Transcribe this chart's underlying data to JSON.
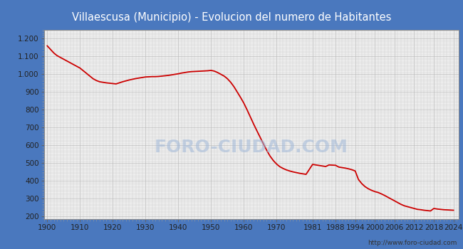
{
  "title": "Villaescusa (Municipio) - Evolucion del numero de Habitantes",
  "title_color": "#ffffff",
  "title_bg_color": "#4a78be",
  "plot_bg_color": "#f0f0f0",
  "outer_bg_color": "#4a78be",
  "line_color": "#cc0000",
  "line_width": 1.3,
  "watermark": "FORO-CIUDAD.COM",
  "url": "http://www.foro-ciudad.com",
  "years": [
    1900,
    1901,
    1902,
    1903,
    1904,
    1905,
    1906,
    1907,
    1908,
    1909,
    1910,
    1911,
    1912,
    1913,
    1914,
    1915,
    1916,
    1917,
    1918,
    1919,
    1920,
    1921,
    1922,
    1923,
    1924,
    1925,
    1926,
    1927,
    1928,
    1929,
    1930,
    1931,
    1932,
    1933,
    1934,
    1935,
    1936,
    1937,
    1938,
    1939,
    1940,
    1941,
    1942,
    1943,
    1944,
    1945,
    1946,
    1947,
    1948,
    1949,
    1950,
    1951,
    1952,
    1953,
    1954,
    1955,
    1956,
    1957,
    1958,
    1959,
    1960,
    1961,
    1962,
    1963,
    1964,
    1965,
    1966,
    1967,
    1968,
    1969,
    1970,
    1971,
    1972,
    1973,
    1974,
    1975,
    1976,
    1977,
    1978,
    1979,
    1981,
    1982,
    1983,
    1984,
    1985,
    1986,
    1987,
    1988,
    1989,
    1990,
    1991,
    1992,
    1993,
    1994,
    1995,
    1996,
    1997,
    1998,
    1999,
    2000,
    2001,
    2002,
    2003,
    2004,
    2005,
    2006,
    2007,
    2008,
    2009,
    2010,
    2011,
    2012,
    2013,
    2014,
    2015,
    2016,
    2017,
    2018,
    2019,
    2020,
    2021,
    2022,
    2023,
    2024
  ],
  "population": [
    1160,
    1140,
    1120,
    1105,
    1095,
    1085,
    1075,
    1065,
    1055,
    1045,
    1035,
    1020,
    1005,
    990,
    975,
    965,
    958,
    955,
    952,
    950,
    948,
    946,
    952,
    958,
    963,
    968,
    972,
    976,
    979,
    982,
    985,
    986,
    987,
    987,
    988,
    990,
    992,
    994,
    997,
    1000,
    1003,
    1007,
    1010,
    1013,
    1015,
    1016,
    1017,
    1018,
    1019,
    1020,
    1022,
    1018,
    1010,
    1000,
    990,
    975,
    955,
    930,
    900,
    870,
    838,
    800,
    760,
    720,
    682,
    645,
    608,
    572,
    540,
    515,
    495,
    480,
    470,
    462,
    456,
    451,
    447,
    443,
    440,
    437,
    493,
    490,
    487,
    484,
    481,
    490,
    489,
    488,
    478,
    475,
    472,
    468,
    463,
    456,
    408,
    385,
    368,
    356,
    347,
    340,
    335,
    327,
    318,
    308,
    298,
    288,
    278,
    268,
    260,
    255,
    250,
    245,
    240,
    238,
    235,
    233,
    231,
    245,
    242,
    240,
    238,
    237,
    236,
    235
  ],
  "xticks": [
    1900,
    1910,
    1920,
    1930,
    1940,
    1950,
    1960,
    1970,
    1981,
    1988,
    1994,
    2000,
    2006,
    2012,
    2018,
    2024
  ],
  "yticks": [
    200,
    300,
    400,
    500,
    600,
    700,
    800,
    900,
    1000,
    1100,
    1200
  ],
  "ytick_labels": [
    "200",
    "300",
    "400",
    "500",
    "600",
    "700",
    "800",
    "900",
    "1.000",
    "1.100",
    "1.200"
  ],
  "ylim": [
    185,
    1250
  ],
  "xlim": [
    1899,
    2025.5
  ]
}
